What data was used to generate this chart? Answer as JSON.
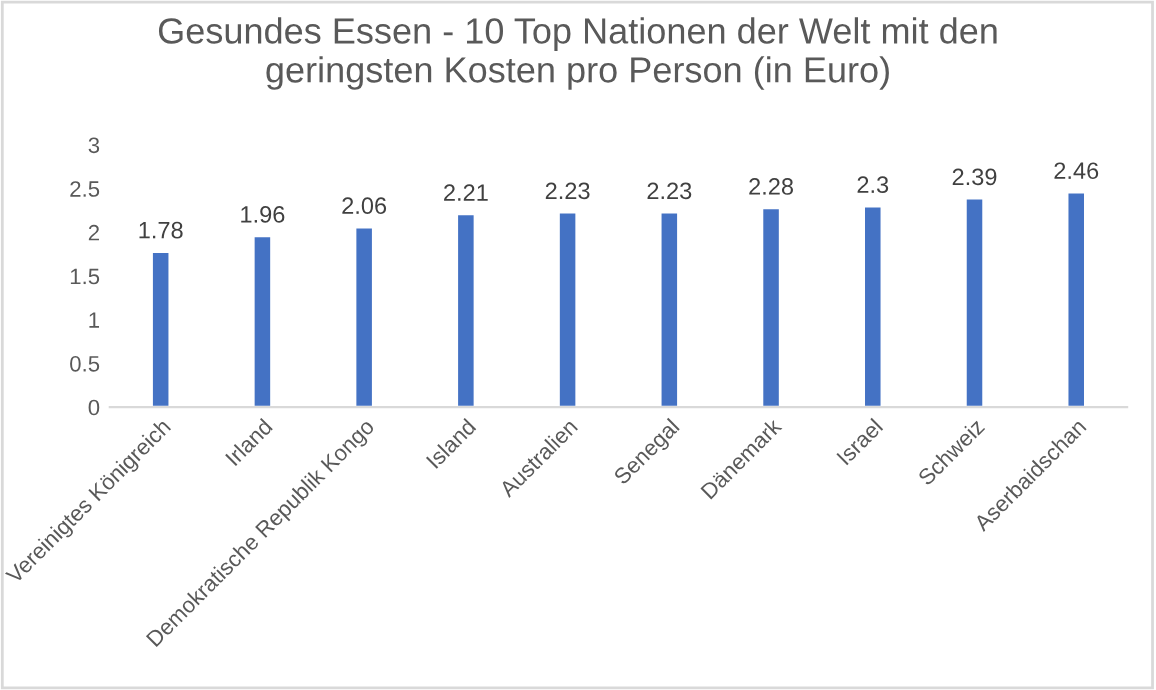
{
  "chart_data": {
    "type": "bar",
    "title": "Gesundes Essen - 10 Top Nationen der Welt mit den\ngeringsten Kosten pro Person (in Euro)",
    "categories": [
      "Vereinigtes Königreich",
      "Irland",
      "Demokratische Republik Kongo",
      "Island",
      "Australien",
      "Senegal",
      "Dänemark",
      "Israel",
      "Schweiz",
      "Aserbaidschan"
    ],
    "values": [
      1.78,
      1.96,
      2.06,
      2.21,
      2.23,
      2.23,
      2.28,
      2.3,
      2.39,
      2.46
    ],
    "color": "#4472c4",
    "ylim": [
      0,
      3
    ],
    "yticks": [
      0,
      0.5,
      1,
      1.5,
      2,
      2.5,
      3
    ],
    "data_labels": true,
    "grid": false,
    "legend": false
  }
}
